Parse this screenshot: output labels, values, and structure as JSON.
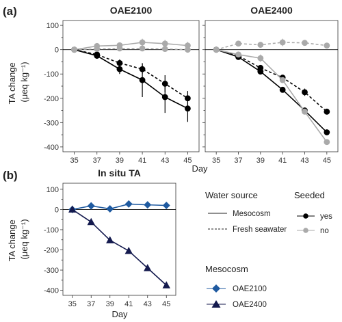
{
  "panel_a": {
    "letter": "(a)",
    "ylabel_line1": "TA change",
    "ylabel_line2": "(μeq kg⁻¹)",
    "xlabel": "Day"
  },
  "panel_b": {
    "letter": "(b)",
    "ylabel_line1": "TA change",
    "ylabel_line2": "(μeq kg⁻¹)",
    "xlabel": "Day"
  },
  "legend": {
    "water_source_title": "Water source",
    "water_source_items": [
      "Mesocosm",
      "Fresh seawater"
    ],
    "seeded_title": "Seeded",
    "seeded_items": [
      "yes",
      "no"
    ],
    "mesocosm_title": "Mesocosm",
    "mesocosm_items": [
      "OAE2100",
      "OAE2400"
    ]
  },
  "colors": {
    "seeded_yes": "#000000",
    "seeded_no": "#aaaaaa",
    "oae2100": "#1f5aa0",
    "oae2400": "#141a4e"
  },
  "chart_data": [
    {
      "type": "line",
      "title": "OAE2100",
      "xlabel": "Day",
      "ylabel": "TA change (μeq kg⁻¹)",
      "x": [
        35,
        37,
        39,
        41,
        43,
        45
      ],
      "xticks": [
        35,
        37,
        39,
        41,
        43,
        45
      ],
      "ylim": [
        -420,
        120
      ],
      "yticks": [
        100,
        0,
        -100,
        -200,
        -300,
        -400
      ],
      "series": [
        {
          "seeded": "yes",
          "water": "Mesocosm",
          "values": [
            0,
            -25,
            -80,
            -125,
            -195,
            -242
          ],
          "err": [
            0,
            12,
            20,
            70,
            65,
            55
          ]
        },
        {
          "seeded": "yes",
          "water": "Fresh seawater",
          "values": [
            0,
            -20,
            -55,
            -80,
            -140,
            -200
          ],
          "err": [
            0,
            10,
            15,
            20,
            35,
            30
          ]
        },
        {
          "seeded": "no",
          "water": "Mesocosm",
          "values": [
            0,
            15,
            18,
            30,
            25,
            17
          ],
          "err": [
            0,
            10,
            12,
            15,
            15,
            15
          ]
        },
        {
          "seeded": "no",
          "water": "Fresh seawater",
          "values": [
            0,
            3,
            5,
            5,
            3,
            0
          ],
          "err": [
            0,
            8,
            10,
            10,
            10,
            10
          ]
        }
      ]
    },
    {
      "type": "line",
      "title": "OAE2400",
      "xlabel": "Day",
      "x": [
        35,
        37,
        39,
        41,
        43,
        45
      ],
      "xticks": [
        35,
        37,
        39,
        41,
        43,
        45
      ],
      "ylim": [
        -420,
        120
      ],
      "yticks": [
        100,
        0,
        -100,
        -200,
        -300,
        -400
      ],
      "series": [
        {
          "seeded": "yes",
          "water": "Mesocosm",
          "values": [
            0,
            -30,
            -90,
            -165,
            -250,
            -340
          ],
          "err": [
            0,
            8,
            10,
            8,
            8,
            8
          ]
        },
        {
          "seeded": "yes",
          "water": "Fresh seawater",
          "values": [
            0,
            -25,
            -75,
            -115,
            -175,
            -255
          ],
          "err": [
            0,
            8,
            10,
            10,
            15,
            10
          ]
        },
        {
          "seeded": "no",
          "water": "Mesocosm",
          "values": [
            0,
            -20,
            -35,
            -125,
            -255,
            -380
          ],
          "err": [
            0,
            8,
            15,
            10,
            10,
            8
          ]
        },
        {
          "seeded": "no",
          "water": "Fresh seawater",
          "values": [
            0,
            25,
            20,
            30,
            28,
            17
          ],
          "err": [
            0,
            8,
            8,
            15,
            8,
            8
          ]
        }
      ]
    },
    {
      "type": "line",
      "title": "In situ TA",
      "xlabel": "Day",
      "ylabel": "TA change (μeq kg⁻¹)",
      "x": [
        35,
        37,
        39,
        41,
        43,
        45
      ],
      "xticks": [
        35,
        37,
        39,
        41,
        43,
        45
      ],
      "ylim": [
        -425,
        130
      ],
      "yticks": [
        100,
        0,
        -100,
        -200,
        -300,
        -400
      ],
      "series": [
        {
          "name": "OAE2100",
          "marker": "diamond",
          "values": [
            0,
            18,
            3,
            27,
            23,
            20
          ]
        },
        {
          "name": "OAE2400",
          "marker": "triangle",
          "values": [
            0,
            -62,
            -152,
            -205,
            -290,
            -375
          ]
        }
      ]
    }
  ]
}
